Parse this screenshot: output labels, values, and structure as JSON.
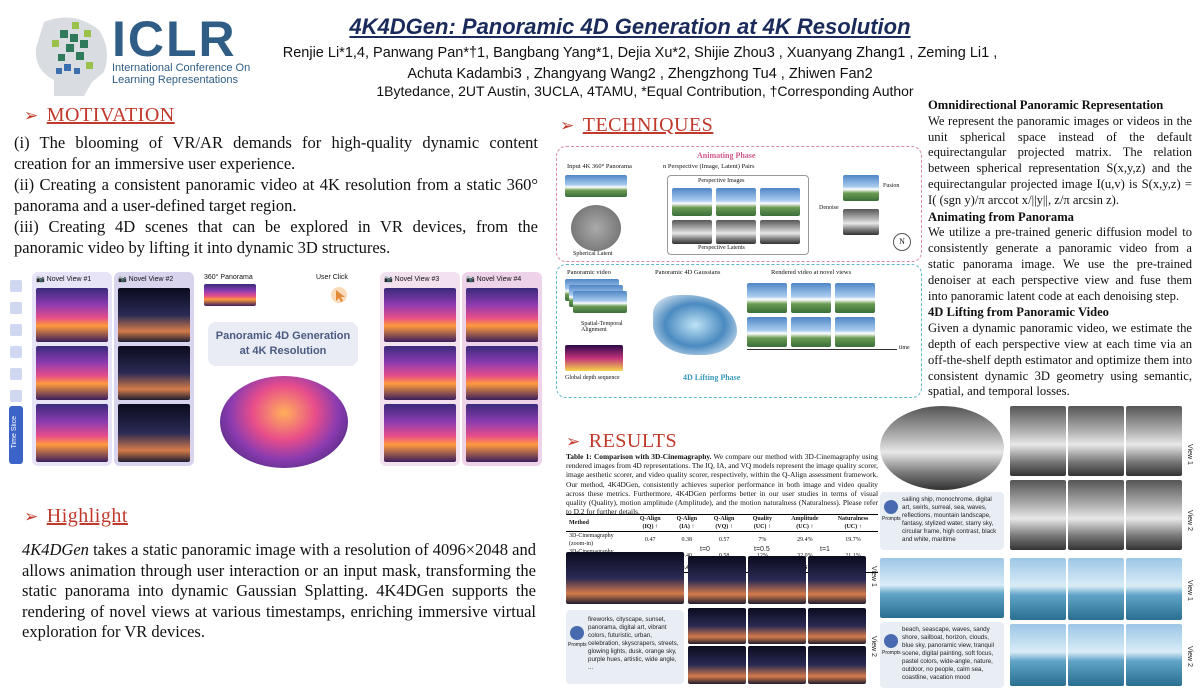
{
  "header": {
    "logo_word": "ICLR",
    "logo_sub": "International Conference On Learning Representations",
    "title": "4K4DGen: Panoramic 4D Generation at 4K Resolution",
    "authors_line1": "Renjie Li*1,4, Panwang Pan*†1, Bangbang Yang*1, Dejia Xu*2, Shijie Zhou3 , Xuanyang Zhang1 , Zeming Li1 ,",
    "authors_line2": "Achuta Kadambi3 , Zhangyang Wang2 , Zhengzhong Tu4 , Zhiwen Fan2",
    "affiliations": "1Bytedance,  2UT Austin,  3UCLA,  4TAMU,  *Equal Contribution,  †Corresponding Author"
  },
  "motivation": {
    "heading": "MOTIVATION",
    "p1": "(i) The blooming of VR/AR demands for high-quality dynamic content creation for an immersive user experience.",
    "p2": "(ii) Creating a consistent panoramic video at 4K resolution from a static 360° panorama and a user-defined target region.",
    "p3": "(iii) Creating 4D scenes that can be explored in VR devices, from the panoramic video by lifting it into dynamic 3D structures."
  },
  "teaser": {
    "novel_view_1": "Novel View #1",
    "novel_view_2": "Novel View #2",
    "novel_view_3": "Novel View #3",
    "novel_view_4": "Novel View #4",
    "panorama_label": "360° Panorama",
    "user_click": "User Click",
    "center_title_1": "Panoramic 4D Generation",
    "center_title_2": "at 4K Resolution",
    "time_slice": "Time Slice"
  },
  "highlight": {
    "heading": "Highlight",
    "lead": "4K4DGen",
    "text": " takes a static panoramic image with a resolution of 4096×2048 and allows animation through user interaction or an input mask, transforming the static panorama into dynamic Gaussian Splatting. 4K4DGen supports the rendering of novel views at various timestamps, enriching immersive virtual exploration for VR devices."
  },
  "techniques": {
    "heading": "TECHNIQUES",
    "animating_phase": "Animating Phase",
    "input_label": "Input 4K 360° Panorama",
    "pairs_label": "n Perspective (Image, Latent) Pairs",
    "perspective_images": "Perspective Images",
    "spherical_latent": "Spherical Latent",
    "perspective_latents": "Perspective Latents",
    "denoise": "Denoise",
    "fusion": "Fusion",
    "panoramic_video": "Panoramic video",
    "gaussians": "Panoramic 4D Gaussians",
    "rendered": "Rendered video at novel views",
    "alignment": "Spatial-Temporal Alignment",
    "depth_seq": "Global depth sequence",
    "lifting_phase": "4D Lifting Phase",
    "time": "time"
  },
  "right_text": {
    "h1": "Omnidirectional Panoramic Representation",
    "p1": "We represent the panoramic images or videos in the unit spherical space instead of the default equirectangular projected matrix. The relation between spherical representation S(x,y,z) and the equirectangular projected image I(u,v) is S(x,y,z) = I( (sgn y)/π arccot x/||y||, z/π arcsin z).",
    "h2": "Animating from Panorama",
    "p2": "We utilize a pre-trained generic diffusion model to consistently generate a panoramic video from a static panorama image.  We use the pre-trained denoiser at each perspective view and fuse them into panoramic latent code at each denoising step.",
    "h3": "4D Lifting from Panoramic Video",
    "p3": "Given a dynamic panoramic video, we estimate the depth of each perspective view at each time via an off-the-shelf depth estimator and optimize them into consistent dynamic 3D geometry using semantic, spatial, and temporal losses."
  },
  "results": {
    "heading": "RESULTS",
    "caption_bold": "Table 1: Comparison with 3D-Cinemagraphy.",
    "caption": " We compare our method with 3D-Cinemagraphy using rendered images from 4D representations. The IQ, IA, and VQ models represent the image quality scorer, image aesthetic scorer, and video quality scorer, respectively, within the Q-Align assessment framework. Our method, 4K4DGen, consistently achieves superior performance in both image and video quality across these metrics. Furthermore, 4K4DGen performs better in our user studies in terms of visual quality (Quality), motion amplitude (Amplitude), and the motion naturalness (Naturalness). Please refer to D.2 for further details.",
    "table": {
      "headers": [
        "Method",
        "Q-Align (IQ) ↑",
        "Q-Align (IA) ↑",
        "Q-Align (VQ) ↑",
        "Quality (UC) ↑",
        "Amplitude (UC) ↑",
        "Naturalness (UC) ↑"
      ],
      "rows": [
        [
          "3D-Cinemagraphy (zoom-in)",
          "0.47",
          "0.38",
          "0.57",
          "7%",
          "29.4%",
          "19.7%"
        ],
        [
          "3D-Cinemagraphy (circle)",
          "0.48",
          "0.40",
          "0.58",
          "12%",
          "32.0%",
          "21.1%"
        ],
        [
          "Ours (holistic pipeline)",
          "0.66",
          "0.44",
          "0.62",
          "81%",
          "38.6%",
          "59.2%"
        ]
      ]
    },
    "prompt_label": "Prompts",
    "prompt_a": "sailing ship, monochrome, digital art, swirls, surreal, sea, waves, reflections, mountain landscape, fantasy, stylized water, starry sky, circular frame, high contrast, black and white, maritime",
    "prompt_b": "fireworks, cityscape, sunset, panorama, digital art, vibrant colors, futuristic, urban, celebration, skyscrapers, streets, glowing lights, dusk, orange sky, purple hues, artistic, wide angle, ...",
    "prompt_c": "beach, seascape, waves, sandy shore, sailboat, horizon, clouds, blue sky, panoramic view, tranquil scene, digital painting, soft focus, pastel colors, wide-angle, nature, outdoor, no people, calm sea, coastline, vacation mood",
    "input_rgb": "Input RGB",
    "t0": "t=0",
    "t05": "t=0.5",
    "t1": "t=1",
    "view1": "View 1",
    "view2": "View 2"
  }
}
